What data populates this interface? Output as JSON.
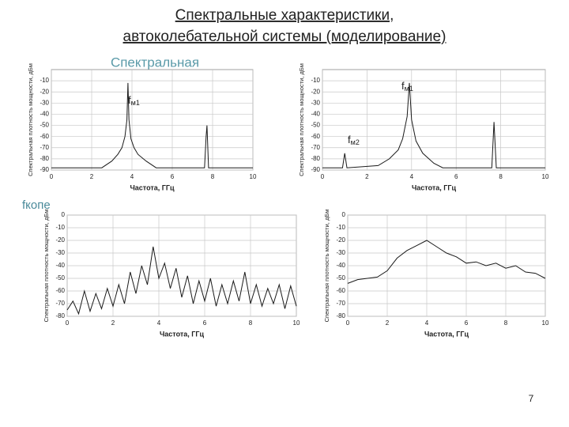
{
  "slide": {
    "title_lines": [
      "Спектральные характеристики,",
      "автоколебательной системы (моделирование)"
    ],
    "overlay": "Спектральная",
    "side_overlay": "fкопе",
    "page_number": "7"
  },
  "chart_data": [
    {
      "type": "line",
      "x_label": "Частота, ГГц",
      "y_label": "Спектральная плотность мощности, дБм",
      "xlim": [
        0,
        10
      ],
      "xticks": [
        0,
        2,
        4,
        6,
        8,
        10
      ],
      "ylim": [
        -90,
        0
      ],
      "yticks": [
        -10,
        -20,
        -30,
        -40,
        -50,
        -60,
        -70,
        -80,
        -90
      ],
      "grid": true,
      "color": "#1a1a1a",
      "annotations": [
        {
          "main": "f",
          "sub": "м1"
        }
      ],
      "x": [
        0,
        2.5,
        3,
        3.3,
        3.5,
        3.65,
        3.75,
        3.8,
        3.85,
        3.95,
        4.1,
        4.3,
        4.7,
        5.2,
        7.6,
        7.68,
        7.72,
        7.8,
        10
      ],
      "values": [
        -88,
        -88,
        -82,
        -76,
        -70,
        -60,
        -45,
        -12,
        -45,
        -62,
        -70,
        -76,
        -82,
        -88,
        -88,
        -60,
        -50,
        -88,
        -88
      ]
    },
    {
      "type": "line",
      "x_label": "Частота, ГГц",
      "y_label": "Спектральная плотность мощности, дБм",
      "xlim": [
        0,
        10
      ],
      "xticks": [
        0,
        2,
        4,
        6,
        8,
        10
      ],
      "ylim": [
        -90,
        0
      ],
      "yticks": [
        -10,
        -20,
        -30,
        -40,
        -50,
        -60,
        -70,
        -80,
        -90
      ],
      "grid": true,
      "color": "#1a1a1a",
      "annotations": [
        {
          "main": "f",
          "sub": "м1"
        },
        {
          "main": "f",
          "sub": "м2"
        }
      ],
      "x": [
        0,
        0.9,
        1,
        1.1,
        2.5,
        3,
        3.4,
        3.6,
        3.8,
        3.9,
        4,
        4.2,
        4.5,
        5,
        5.4,
        7.6,
        7.7,
        7.8,
        10
      ],
      "values": [
        -88,
        -88,
        -75,
        -88,
        -86,
        -80,
        -72,
        -62,
        -42,
        -12,
        -45,
        -64,
        -75,
        -84,
        -88,
        -88,
        -47,
        -88,
        -88
      ]
    },
    {
      "type": "line",
      "x_label": "Частота, ГГц",
      "y_label": "Спектральная плотность мощности, дБм",
      "xlim": [
        0,
        10
      ],
      "xticks": [
        0,
        2,
        4,
        6,
        8,
        10
      ],
      "ylim": [
        -80,
        0
      ],
      "yticks": [
        0,
        -10,
        -20,
        -30,
        -40,
        -50,
        -60,
        -70,
        -80
      ],
      "grid": true,
      "color": "#1a1a1a",
      "x": [
        0,
        0.25,
        0.5,
        0.75,
        1,
        1.25,
        1.5,
        1.75,
        2,
        2.25,
        2.5,
        2.75,
        3,
        3.25,
        3.5,
        3.75,
        4,
        4.25,
        4.5,
        4.75,
        5,
        5.25,
        5.5,
        5.75,
        6,
        6.25,
        6.5,
        6.75,
        7,
        7.25,
        7.5,
        7.75,
        8,
        8.25,
        8.5,
        8.75,
        9,
        9.25,
        9.5,
        9.75,
        10
      ],
      "values": [
        -75,
        -68,
        -78,
        -60,
        -76,
        -62,
        -74,
        -58,
        -72,
        -55,
        -70,
        -45,
        -62,
        -40,
        -55,
        -25,
        -50,
        -38,
        -58,
        -42,
        -65,
        -48,
        -70,
        -52,
        -68,
        -50,
        -72,
        -55,
        -70,
        -52,
        -68,
        -45,
        -70,
        -55,
        -72,
        -58,
        -70,
        -55,
        -74,
        -56,
        -72
      ]
    },
    {
      "type": "line",
      "x_label": "Частота, ГГц",
      "y_label": "Спектральная плотность мощности, дБм",
      "xlim": [
        0,
        10
      ],
      "xticks": [
        0,
        2,
        4,
        6,
        8,
        10
      ],
      "ylim": [
        -80,
        0
      ],
      "yticks": [
        0,
        -10,
        -20,
        -30,
        -40,
        -50,
        -60,
        -70,
        -80
      ],
      "grid": true,
      "color": "#1a1a1a",
      "x": [
        0,
        0.5,
        1,
        1.5,
        2,
        2.5,
        3,
        3.5,
        4,
        4.5,
        5,
        5.5,
        6,
        6.5,
        7,
        7.5,
        8,
        8.5,
        9,
        9.5,
        10
      ],
      "values": [
        -54,
        -51,
        -50,
        -49,
        -44,
        -34,
        -28,
        -24,
        -20,
        -25,
        -30,
        -33,
        -38,
        -37,
        -40,
        -38,
        -42,
        -40,
        -45,
        -46,
        -50
      ]
    }
  ]
}
